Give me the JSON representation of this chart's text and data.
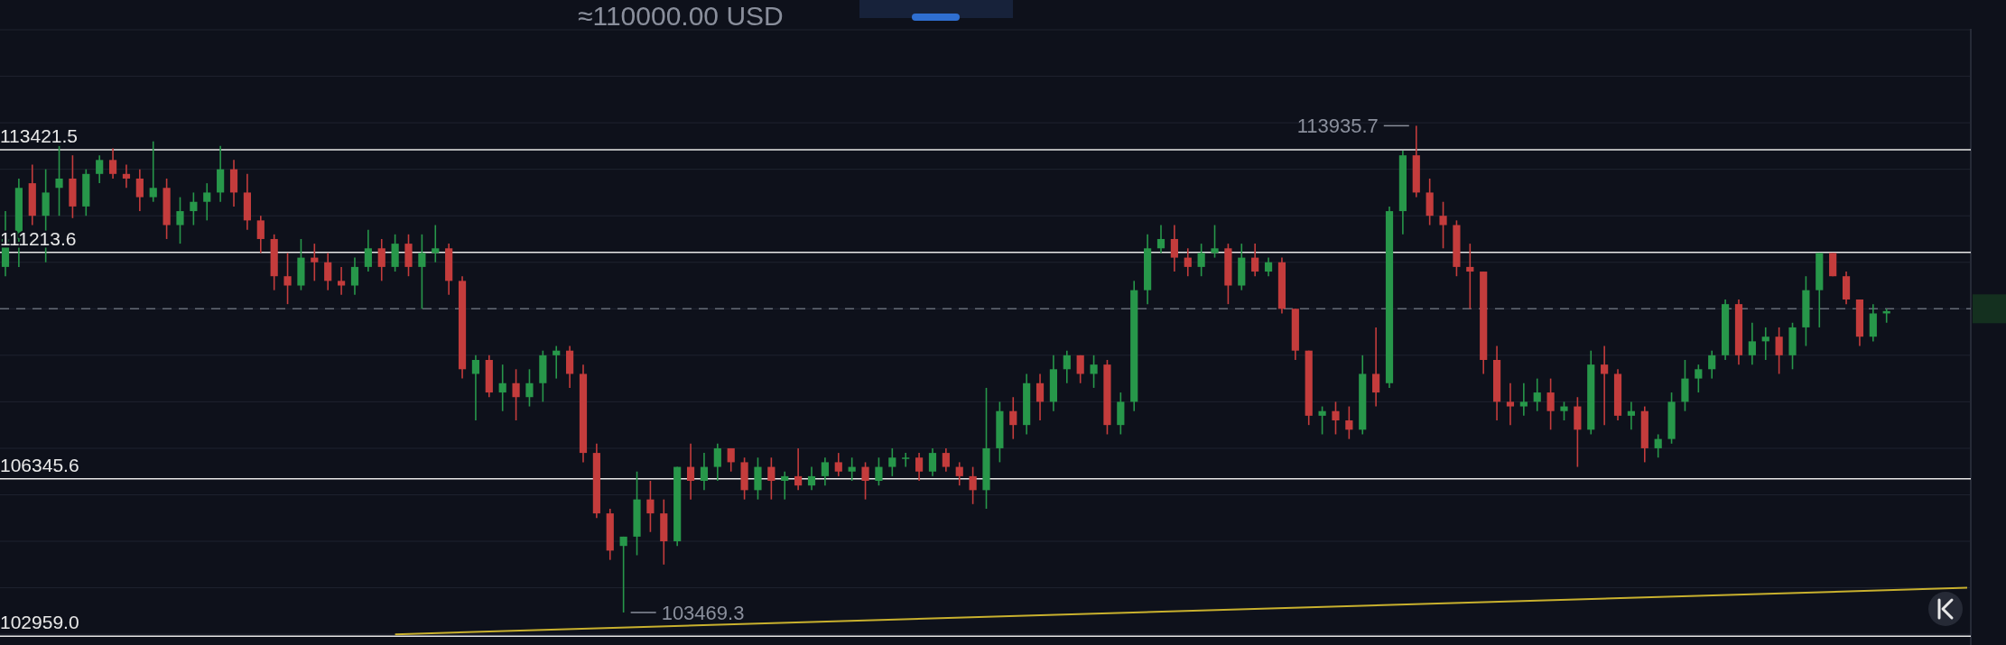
{
  "chart_data": {
    "type": "candlestick",
    "subtitle": "≈110000.00 USD",
    "categories": [
      null,
      null,
      null,
      null,
      null,
      null,
      null,
      null,
      null,
      null,
      null,
      null,
      null,
      null,
      null,
      null,
      null,
      null,
      null,
      null,
      null,
      null,
      null,
      null,
      null,
      null,
      null,
      null,
      null,
      null,
      null,
      null,
      null,
      null,
      null,
      null,
      null,
      null,
      null,
      null,
      null,
      null,
      null,
      null,
      null,
      null,
      null,
      null,
      null,
      null,
      null,
      null,
      null,
      null,
      null,
      null,
      null,
      null,
      null,
      null,
      null,
      null,
      null,
      null,
      null,
      null,
      null,
      null,
      null,
      null,
      null,
      null,
      null,
      null,
      null,
      null,
      null,
      null,
      null,
      null,
      null,
      null,
      null,
      null,
      null,
      null,
      null,
      null,
      null,
      null,
      null,
      null,
      null,
      null,
      null,
      null,
      null,
      null,
      null,
      null,
      null,
      null,
      null,
      null,
      null,
      null,
      null,
      null,
      null,
      null,
      null,
      null,
      null,
      null,
      null,
      null,
      null,
      null,
      null,
      null,
      null,
      null,
      null,
      null,
      null,
      null,
      null,
      null,
      null,
      null,
      null,
      null,
      null,
      null,
      null,
      null,
      null,
      null,
      null,
      null,
      null,
      null,
      null,
      null,
      null,
      null,
      null
    ],
    "ohlc": [
      [
        110900,
        112100,
        110700,
        111500
      ],
      [
        111500,
        112800,
        110900,
        112600
      ],
      [
        112700,
        113100,
        111800,
        112000
      ],
      [
        112000,
        113000,
        111000,
        112500
      ],
      [
        112600,
        113500,
        112000,
        112800
      ],
      [
        112800,
        113300,
        111950,
        112200
      ],
      [
        112200,
        113000,
        112000,
        112900
      ],
      [
        112900,
        113300,
        112700,
        113200
      ],
      [
        113200,
        113450,
        112800,
        112900
      ],
      [
        112900,
        113100,
        112600,
        112800
      ],
      [
        112800,
        113000,
        112100,
        112400
      ],
      [
        112400,
        113600,
        112300,
        112600
      ],
      [
        112600,
        112800,
        111500,
        111800
      ],
      [
        111800,
        112400,
        111400,
        112100
      ],
      [
        112100,
        112500,
        111800,
        112300
      ],
      [
        112300,
        112700,
        111900,
        112500
      ],
      [
        112500,
        113500,
        112300,
        113000
      ],
      [
        113000,
        113200,
        112200,
        112500
      ],
      [
        112500,
        112900,
        111700,
        111900
      ],
      [
        111900,
        112000,
        111200,
        111500
      ],
      [
        111500,
        111600,
        110400,
        110700
      ],
      [
        110700,
        111200,
        110100,
        110500
      ],
      [
        110500,
        111500,
        110400,
        111100
      ],
      [
        111100,
        111400,
        110600,
        111000
      ],
      [
        111000,
        111200,
        110400,
        110600
      ],
      [
        110600,
        110900,
        110300,
        110500
      ],
      [
        110500,
        111100,
        110300,
        110900
      ],
      [
        110900,
        111700,
        110800,
        111300
      ],
      [
        111300,
        111500,
        110600,
        110900
      ],
      [
        110900,
        111600,
        110800,
        111400
      ],
      [
        111400,
        111600,
        110700,
        110900
      ],
      [
        110900,
        111600,
        110000,
        111200
      ],
      [
        111200,
        111800,
        111000,
        111300
      ],
      [
        111300,
        111400,
        110300,
        110600
      ],
      [
        110600,
        110700,
        108500,
        108700
      ],
      [
        108600,
        109000,
        107600,
        108900
      ],
      [
        108900,
        109000,
        108100,
        108200
      ],
      [
        108200,
        108800,
        107800,
        108400
      ],
      [
        108400,
        108700,
        107600,
        108100
      ],
      [
        108100,
        108700,
        107900,
        108400
      ],
      [
        108400,
        109100,
        108000,
        109000
      ],
      [
        109000,
        109200,
        108500,
        109100
      ],
      [
        109100,
        109200,
        108300,
        108600
      ],
      [
        108600,
        108800,
        106700,
        106900
      ],
      [
        106900,
        107100,
        105500,
        105600
      ],
      [
        105600,
        105700,
        104600,
        104800
      ],
      [
        104900,
        105100,
        103469.3,
        105100
      ],
      [
        105100,
        106500,
        104700,
        105900
      ],
      [
        105900,
        106300,
        105200,
        105600
      ],
      [
        105600,
        105900,
        104500,
        105000
      ],
      [
        105000,
        106600,
        104900,
        106600
      ],
      [
        106600,
        107100,
        105900,
        106300
      ],
      [
        106300,
        106900,
        106100,
        106600
      ],
      [
        106600,
        107100,
        106300,
        107000
      ],
      [
        107000,
        107000,
        106500,
        106700
      ],
      [
        106700,
        106800,
        105900,
        106100
      ],
      [
        106100,
        106800,
        105900,
        106600
      ],
      [
        106600,
        106800,
        105900,
        106300
      ],
      [
        106300,
        106500,
        105900,
        106400
      ],
      [
        106400,
        107000,
        106100,
        106200
      ],
      [
        106200,
        106600,
        106100,
        106400
      ],
      [
        106400,
        106800,
        106200,
        106700
      ],
      [
        106700,
        106900,
        106400,
        106500
      ],
      [
        106500,
        106800,
        106300,
        106600
      ],
      [
        106600,
        106700,
        105900,
        106300
      ],
      [
        106300,
        106800,
        106200,
        106600
      ],
      [
        106600,
        107000,
        106400,
        106800
      ],
      [
        106800,
        106900,
        106600,
        106800
      ],
      [
        106800,
        106900,
        106300,
        106500
      ],
      [
        106500,
        107000,
        106400,
        106900
      ],
      [
        106900,
        107000,
        106500,
        106600
      ],
      [
        106600,
        106700,
        106200,
        106400
      ],
      [
        106400,
        106600,
        105800,
        106100
      ],
      [
        106100,
        108300,
        105700,
        107000
      ],
      [
        107000,
        108000,
        106700,
        107800
      ],
      [
        107800,
        108100,
        107200,
        107500
      ],
      [
        107500,
        108600,
        107300,
        108400
      ],
      [
        108400,
        108600,
        107600,
        108000
      ],
      [
        108000,
        109000,
        107800,
        108700
      ],
      [
        108700,
        109100,
        108400,
        109000
      ],
      [
        109000,
        109000,
        108400,
        108600
      ],
      [
        108600,
        109000,
        108300,
        108800
      ],
      [
        108800,
        108900,
        107300,
        107500
      ],
      [
        107500,
        108200,
        107300,
        108000
      ],
      [
        108000,
        110600,
        107800,
        110400
      ],
      [
        110400,
        111600,
        110100,
        111300
      ],
      [
        111300,
        111800,
        111200,
        111500
      ],
      [
        111500,
        111800,
        110800,
        111100
      ],
      [
        111100,
        111300,
        110700,
        110900
      ],
      [
        110900,
        111400,
        110700,
        111200
      ],
      [
        111200,
        111800,
        111100,
        111300
      ],
      [
        111300,
        111400,
        110100,
        110500
      ],
      [
        110500,
        111400,
        110400,
        111100
      ],
      [
        111100,
        111400,
        110700,
        110800
      ],
      [
        110800,
        111100,
        110700,
        111000
      ],
      [
        111000,
        111100,
        109900,
        110000
      ],
      [
        110000,
        110000,
        108900,
        109100
      ],
      [
        109100,
        109100,
        107500,
        107700
      ],
      [
        107700,
        107900,
        107300,
        107800
      ],
      [
        107800,
        108000,
        107300,
        107600
      ],
      [
        107600,
        107900,
        107200,
        107400
      ],
      [
        107400,
        109000,
        107300,
        108600
      ],
      [
        108600,
        109600,
        107900,
        108200
      ],
      [
        108400,
        112200,
        108300,
        112100
      ],
      [
        112100,
        113400,
        111600,
        113300
      ],
      [
        113300,
        113935.7,
        112400,
        112500
      ],
      [
        112500,
        112800,
        111800,
        112000
      ],
      [
        112000,
        112300,
        111300,
        111800
      ],
      [
        111800,
        111900,
        110700,
        110900
      ],
      [
        110900,
        111400,
        110000,
        110800
      ],
      [
        110800,
        110800,
        108600,
        108900
      ],
      [
        108900,
        109200,
        107600,
        108000
      ],
      [
        108000,
        108400,
        107500,
        107900
      ],
      [
        107900,
        108400,
        107700,
        108000
      ],
      [
        108000,
        108500,
        107800,
        108200
      ],
      [
        108200,
        108500,
        107400,
        107800
      ],
      [
        107800,
        108000,
        107600,
        107900
      ],
      [
        107900,
        108100,
        106600,
        107400
      ],
      [
        107400,
        109100,
        107300,
        108800
      ],
      [
        108800,
        109200,
        107500,
        108600
      ],
      [
        108600,
        108700,
        107600,
        107700
      ],
      [
        107700,
        108000,
        107400,
        107800
      ],
      [
        107800,
        107900,
        106700,
        107000
      ],
      [
        107000,
        107300,
        106800,
        107200
      ],
      [
        107200,
        108200,
        107100,
        108000
      ],
      [
        108000,
        108900,
        107800,
        108500
      ],
      [
        108500,
        108800,
        108200,
        108700
      ],
      [
        108700,
        109100,
        108500,
        109000
      ],
      [
        109000,
        110200,
        108900,
        110100
      ],
      [
        110100,
        110200,
        108800,
        109000
      ],
      [
        109000,
        109700,
        108800,
        109300
      ],
      [
        109300,
        109600,
        108900,
        109400
      ],
      [
        109400,
        109600,
        108600,
        109000
      ],
      [
        109000,
        109700,
        108700,
        109600
      ],
      [
        109600,
        110700,
        109200,
        110400
      ],
      [
        110400,
        111200,
        109600,
        111200
      ],
      [
        111200,
        111200,
        110700,
        110700
      ],
      [
        110700,
        110800,
        110100,
        110200
      ],
      [
        110200,
        110200,
        109200,
        109400
      ],
      [
        109400,
        110100,
        109300,
        109900
      ],
      [
        109900,
        110000,
        109700,
        109950
      ],
      null,
      null,
      null,
      null,
      null,
      null
    ],
    "series": [
      {
        "type": "line",
        "color": "#c9b12e",
        "values": [
          null,
          null,
          null,
          null,
          null,
          null,
          null,
          null,
          null,
          null,
          null,
          null,
          null,
          null,
          null,
          null,
          null,
          null,
          null,
          null,
          null,
          null,
          null,
          null,
          null,
          null,
          null,
          null,
          null,
          103000,
          null,
          null,
          null,
          null,
          null,
          null,
          null,
          null,
          null,
          null,
          null,
          null,
          null,
          null,
          null,
          null,
          null,
          null,
          null,
          null,
          null,
          null,
          null,
          null,
          null,
          null,
          null,
          null,
          null,
          null,
          null,
          null,
          null,
          null,
          null,
          null,
          null,
          null,
          null,
          null,
          null,
          null,
          null,
          null,
          null,
          null,
          null,
          null,
          null,
          null,
          null,
          null,
          null,
          null,
          null,
          null,
          null,
          null,
          null,
          null,
          null,
          null,
          null,
          null,
          null,
          null,
          null,
          null,
          null,
          null,
          null,
          null,
          null,
          null,
          null,
          null,
          null,
          null,
          null,
          null,
          null,
          null,
          null,
          null,
          null,
          null,
          null,
          null,
          null,
          null,
          null,
          null,
          null,
          null,
          null,
          null,
          null,
          null,
          null,
          null,
          null,
          null,
          null,
          null,
          null,
          null,
          null,
          null,
          null,
          null,
          null,
          null,
          null,
          null,
          null,
          null,
          104000
        ]
      }
    ],
    "ylim": [
      102770,
      116640
    ],
    "yticks": [
      {
        "value": 103000,
        "label": null
      },
      {
        "value": 104000,
        "label": null
      },
      {
        "value": 105000,
        "label": null
      },
      {
        "value": 106000,
        "label": null
      },
      {
        "value": 107000,
        "label": null
      },
      {
        "value": 108000,
        "label": null
      },
      {
        "value": 109000,
        "label": null
      },
      {
        "value": 110000,
        "label": null
      },
      {
        "value": 111000,
        "label": null
      },
      {
        "value": 112000,
        "label": null
      },
      {
        "value": 113000,
        "label": null
      },
      {
        "value": 114000,
        "label": null
      },
      {
        "value": 115000,
        "label": null
      },
      {
        "value": 116000,
        "label": null
      }
    ],
    "grid": "y",
    "ref_lines": [
      {
        "axis": "y",
        "value": 113421.5,
        "label": "113421.5",
        "color": "#e8e8e8"
      },
      {
        "axis": "y",
        "value": 111213.6,
        "label": "111213.6",
        "color": "#e8e8e8"
      },
      {
        "axis": "y",
        "value": 106345.6,
        "label": "106345.6",
        "color": "#e8e8e8"
      },
      {
        "axis": "y",
        "value": 102959.0,
        "label": "102959.0",
        "color": "#e8e8e8"
      },
      {
        "axis": "y",
        "value": 110000,
        "color": "#656a76",
        "line_style": "dashed"
      }
    ],
    "annotations": [
      "113935.7",
      "103469.3"
    ]
  }
}
